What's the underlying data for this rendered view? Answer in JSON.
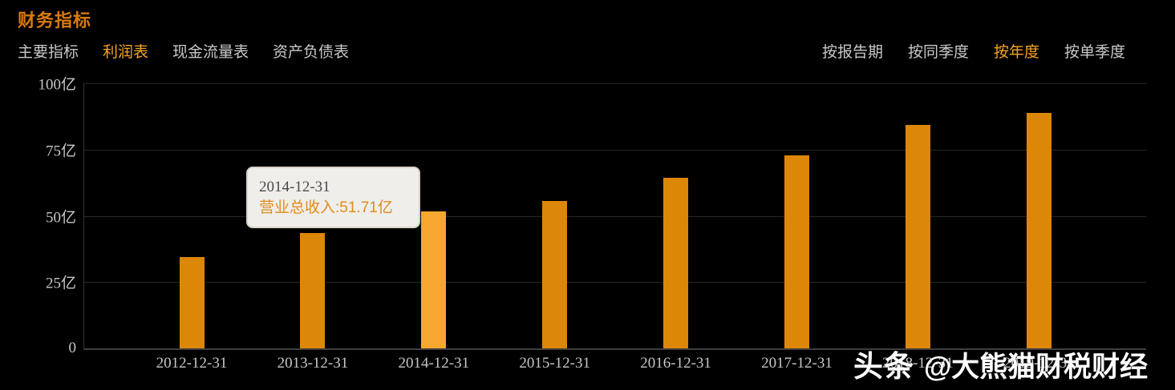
{
  "header": {
    "title": "财务指标"
  },
  "tabs": {
    "left": [
      {
        "id": "main-indicators",
        "label": "主要指标",
        "active": false
      },
      {
        "id": "income-statement",
        "label": "利润表",
        "active": true
      },
      {
        "id": "cash-flow-statement",
        "label": "现金流量表",
        "active": false
      },
      {
        "id": "balance-sheet",
        "label": "资产负债表",
        "active": false
      }
    ],
    "right": [
      {
        "id": "by-report-period",
        "label": "按报告期",
        "active": false
      },
      {
        "id": "by-same-quarter",
        "label": "按同季度",
        "active": false
      },
      {
        "id": "by-year",
        "label": "按年度",
        "active": true
      },
      {
        "id": "by-single-quarter",
        "label": "按单季度",
        "active": false
      }
    ]
  },
  "tooltip": {
    "date": "2014-12-31",
    "value_text": "营业总收入:51.71亿"
  },
  "watermark": {
    "brand": "头条",
    "handle": "@大熊猫财税财经"
  },
  "colors": {
    "accent": "#f6a623",
    "title": "#d9790e",
    "bar": "#dd8708",
    "bar_highlight": "#f6a72f",
    "axis_label": "#c6c6c6",
    "tooltip_value": "#e28a1c"
  },
  "chart_data": {
    "type": "bar",
    "title": "财务指标",
    "categories": [
      "2012-12-31",
      "2013-12-31",
      "2014-12-31",
      "2015-12-31",
      "2016-12-31",
      "2017-12-31",
      "2018-12-31",
      "2019-12-31"
    ],
    "series": [
      {
        "name": "营业总收入",
        "values": [
          34.3,
          43.4,
          51.71,
          55.6,
          64.4,
          72.7,
          84.4,
          88.9
        ]
      }
    ],
    "unit": "亿",
    "xlabel": "",
    "ylabel": "",
    "ylim": [
      0,
      100
    ],
    "yticks": [
      {
        "value": 100,
        "label": "100亿"
      },
      {
        "value": 75,
        "label": "75亿"
      },
      {
        "value": 50,
        "label": "50亿"
      },
      {
        "value": 25,
        "label": "25亿"
      },
      {
        "value": 0,
        "label": "0"
      }
    ],
    "highlighted_index": 2,
    "grid": true,
    "legend": false,
    "tooltip_shown_for": "2014-12-31"
  }
}
